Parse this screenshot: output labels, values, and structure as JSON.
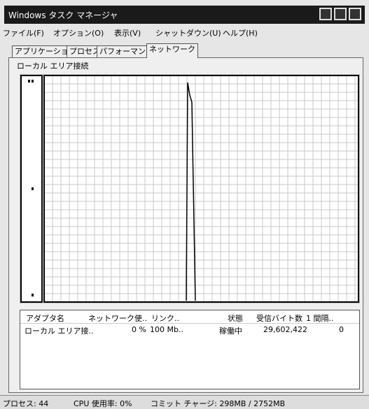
{
  "window": {
    "title": "Windows タスク マネージャ"
  },
  "menu": [
    "ファイル(F)",
    "オプション(O)",
    "表示(V)",
    "シャットダウン(U)",
    "ヘルプ(H)"
  ],
  "tabs": [
    "アプリケーション",
    "プロセス",
    "パフォーマンス",
    "ネットワーク"
  ],
  "group": {
    "label": "ローカル エリア接続"
  },
  "table": {
    "headers": [
      "アダプタ名",
      "ネットワーク使..",
      "リンク..",
      "状態",
      "受信バイト数",
      "1 間隔.."
    ],
    "rows": [
      [
        "ローカル エリア接..",
        "0 %",
        "100 Mb..",
        "稼働中",
        "29,602,422",
        "0"
      ]
    ]
  },
  "status": [
    "プロセス: 44",
    "CPU 使用率: 0%",
    "コミット チャージ: 298MB / 2752MB"
  ]
}
